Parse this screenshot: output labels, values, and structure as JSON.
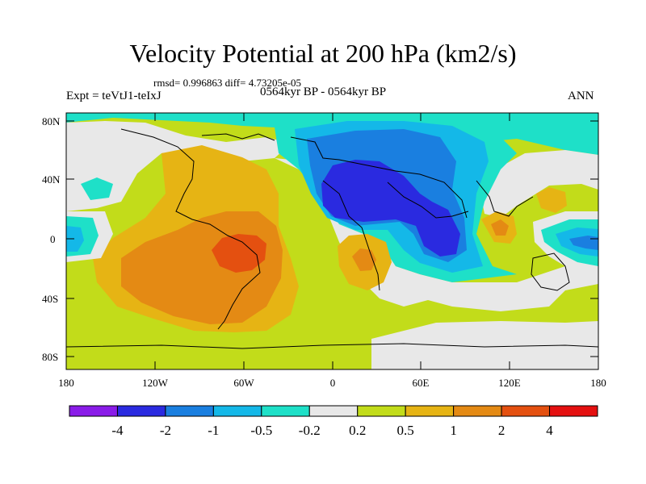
{
  "figure": {
    "title": "Velocity Potential at 200 hPa (km2/s)",
    "stats": "rmsd= 0.996863 diff= 4.73205e-05",
    "experiment": "Expt = teVtJ1-teIxJ",
    "period": "0564kyr BP - 0564kyr BP",
    "season": "ANN"
  },
  "axes": {
    "lat_ticks": [
      "80N",
      "40N",
      "0",
      "40S",
      "80S"
    ],
    "lon_ticks": [
      "180",
      "120W",
      "60W",
      "0",
      "60E",
      "120E",
      "180"
    ]
  },
  "colorbar": {
    "labels": [
      "-4",
      "-2",
      "-1",
      "-0.5",
      "-0.2",
      "0.2",
      "0.5",
      "1",
      "2",
      "4"
    ],
    "colors": [
      "#8a1ce8",
      "#2a2ae0",
      "#1a7fe0",
      "#14b8e8",
      "#1ee0c8",
      "#e8e8e8",
      "#c2dc1a",
      "#e6b414",
      "#e48a14",
      "#e45010",
      "#e41010"
    ]
  },
  "chart_data": {
    "type": "filled-contour-map",
    "title": "Velocity Potential at 200 hPa (km2/s)",
    "variable": "Velocity Potential",
    "level": "200 hPa",
    "units": "km2/s",
    "x_range": [
      -180,
      180
    ],
    "y_range": [
      -90,
      90
    ],
    "contour_levels": [
      -4,
      -2,
      -1,
      -0.5,
      -0.2,
      0.2,
      0.5,
      1,
      2,
      4
    ]
  }
}
